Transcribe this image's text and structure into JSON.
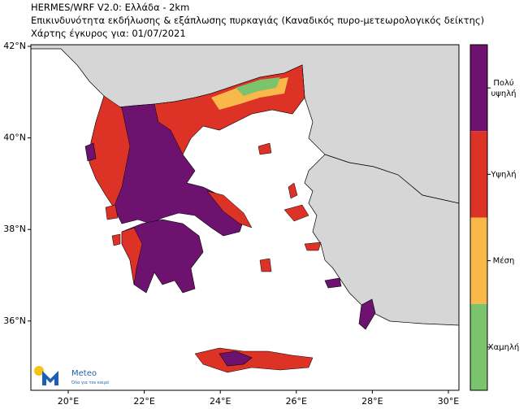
{
  "header": {
    "lines": [
      "HERMES/WRF V2.0: Ελλάδα - 2km",
      "Επικινδυνότητα εκδήλωσης & εξάπλωσης πυρκαγιάς (Καναδικός πυρο-μετεωρολογικός δείκτης)",
      "Χάρτης έγκυρος για: 01/07/2021"
    ]
  },
  "map": {
    "xticks": [
      {
        "value": 20,
        "label": "20°E"
      },
      {
        "value": 22,
        "label": "22°E"
      },
      {
        "value": 24,
        "label": "24°E"
      },
      {
        "value": 26,
        "label": "26°E"
      },
      {
        "value": 28,
        "label": "28°E"
      },
      {
        "value": 30,
        "label": "30°E"
      }
    ],
    "yticks": [
      {
        "value": 42,
        "label": "42°N"
      },
      {
        "value": 40,
        "label": "40°N"
      },
      {
        "value": 38,
        "label": "38°N"
      },
      {
        "value": 36,
        "label": "36°N"
      }
    ]
  },
  "legend": {
    "classes": [
      {
        "label": "Πολύ υψηλή",
        "color": "#6e1270"
      },
      {
        "label": "Υψηλή",
        "color": "#dd3226"
      },
      {
        "label": "Μέση",
        "color": "#f8b84a"
      },
      {
        "label": "Χαμηλή",
        "color": "#7cc36e"
      }
    ]
  },
  "logo": {
    "name": "Meteo",
    "tagline": "Όλα για τον καιρό"
  }
}
